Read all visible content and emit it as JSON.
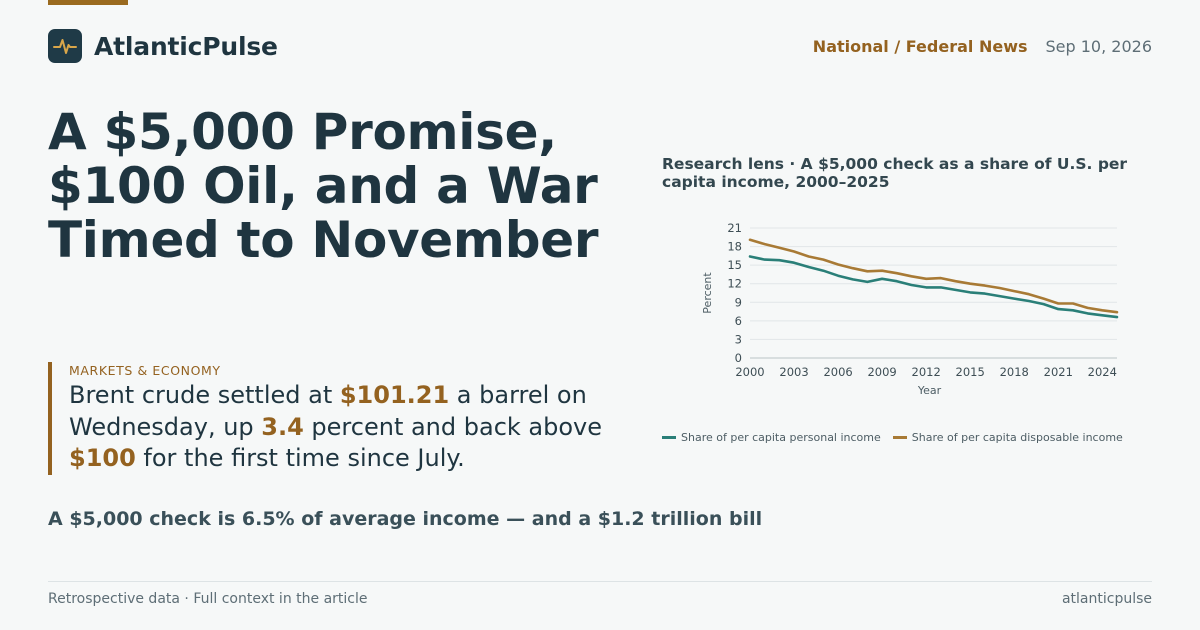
{
  "brand": {
    "name": "AtlanticPulse",
    "logo_icon": "pulse-icon"
  },
  "meta": {
    "section": "National / Federal News",
    "date": "Sep 10, 2026"
  },
  "headline": "A $5,000 Promise, $100 Oil, and a War Timed to November",
  "quote": {
    "kicker": "MARKETS & ECONOMY",
    "parts": [
      {
        "text": "Brent crude settled at ",
        "highlight": false
      },
      {
        "text": "$101.21",
        "highlight": true
      },
      {
        "text": " a barrel on Wednesday, up ",
        "highlight": false
      },
      {
        "text": "3.4",
        "highlight": true
      },
      {
        "text": " percent and back above ",
        "highlight": false
      },
      {
        "text": "$100",
        "highlight": true
      },
      {
        "text": " for the first time since July.",
        "highlight": false
      }
    ]
  },
  "subhead": "A $5,000 check is 6.5% of average income — and a $1.2 trillion bill",
  "footer": {
    "left": "Retrospective data · Full context in the article",
    "right": "atlanticpulse"
  },
  "colors": {
    "accent": "#946220",
    "navy": "#1f3a47",
    "series_personal": "#2a7f78",
    "series_disposable": "#a87a35"
  },
  "chart_data": {
    "type": "line",
    "title": "Research lens · A $5,000 check as a share of U.S. per capita income, 2000–2025",
    "xlabel": "Year",
    "ylabel": "Percent",
    "xlim": [
      2000,
      2025
    ],
    "ylim": [
      0,
      21
    ],
    "x_ticks": [
      2000,
      2003,
      2006,
      2009,
      2012,
      2015,
      2018,
      2021,
      2024
    ],
    "y_ticks": [
      0,
      3,
      6,
      9,
      12,
      15,
      18,
      21
    ],
    "grid": true,
    "legend_position": "bottom",
    "x": [
      2000,
      2001,
      2002,
      2003,
      2004,
      2005,
      2006,
      2007,
      2008,
      2009,
      2010,
      2011,
      2012,
      2013,
      2014,
      2015,
      2016,
      2017,
      2018,
      2019,
      2020,
      2021,
      2022,
      2023,
      2024,
      2025
    ],
    "series": [
      {
        "name": "Share of per capita personal income",
        "color": "#2a7f78",
        "values": [
          16.4,
          15.9,
          15.8,
          15.4,
          14.7,
          14.1,
          13.3,
          12.7,
          12.3,
          12.8,
          12.4,
          11.8,
          11.4,
          11.4,
          11.0,
          10.6,
          10.4,
          10.0,
          9.6,
          9.2,
          8.7,
          7.9,
          7.7,
          7.2,
          6.9,
          6.6
        ]
      },
      {
        "name": "Share of per capita disposable income",
        "color": "#a87a35",
        "values": [
          19.1,
          18.4,
          17.8,
          17.2,
          16.4,
          15.9,
          15.1,
          14.5,
          14.0,
          14.1,
          13.7,
          13.2,
          12.8,
          12.9,
          12.4,
          12.0,
          11.7,
          11.3,
          10.8,
          10.3,
          9.6,
          8.8,
          8.8,
          8.1,
          7.7,
          7.4
        ]
      }
    ]
  }
}
